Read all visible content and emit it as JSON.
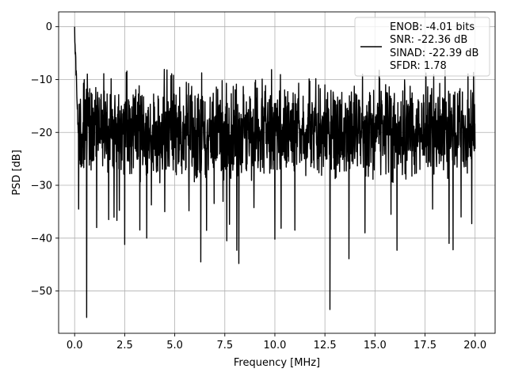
{
  "chart_data": {
    "type": "line",
    "title": "",
    "xlabel": "Frequency [MHz]",
    "ylabel": "PSD [dB]",
    "xlim": [
      -0.8,
      21.0
    ],
    "ylim": [
      -58.0,
      2.8
    ],
    "x_ticks": [
      0.0,
      2.5,
      5.0,
      7.5,
      10.0,
      12.5,
      15.0,
      17.5,
      20.0
    ],
    "x_tick_labels": [
      "0.0",
      "2.5",
      "5.0",
      "7.5",
      "10.0",
      "12.5",
      "15.0",
      "17.5",
      "20.0"
    ],
    "y_ticks": [
      0,
      -10,
      -20,
      -30,
      -40,
      -50
    ],
    "y_tick_labels": [
      "0",
      "−10",
      "−20",
      "−30",
      "−40",
      "−50"
    ],
    "grid": true,
    "legend_position": "top-right",
    "line_color": "#000000",
    "legend": {
      "lines": [
        "ENOB: -4.01 bits",
        "SNR: -22.36 dB",
        "SINAD: -22.39 dB",
        "SFDR: 1.78"
      ]
    },
    "series": [
      {
        "noise_floor_db": [
          -30,
          -10
        ],
        "peak": {
          "x": 0.0,
          "y": 0.0
        },
        "spikes": [
          {
            "x": 0.6,
            "y": -55
          },
          {
            "x": 12.75,
            "y": -53.5
          },
          {
            "x": 6.3,
            "y": -44.5
          },
          {
            "x": 8.2,
            "y": -44.8
          },
          {
            "x": 8.1,
            "y": -42.3
          },
          {
            "x": 13.7,
            "y": -43.9
          },
          {
            "x": 2.5,
            "y": -41.2
          },
          {
            "x": 3.6,
            "y": -40.0
          },
          {
            "x": 7.6,
            "y": -40.5
          },
          {
            "x": 10.0,
            "y": -40.2
          },
          {
            "x": 16.1,
            "y": -42.3
          },
          {
            "x": 18.7,
            "y": -41.0
          },
          {
            "x": 18.9,
            "y": -42.2
          },
          {
            "x": 11.0,
            "y": -38.5
          },
          {
            "x": 14.5,
            "y": -39.0
          },
          {
            "x": 1.1,
            "y": -38.0
          },
          {
            "x": 1.7,
            "y": -36.5
          },
          {
            "x": 4.5,
            "y": -35.0
          },
          {
            "x": 19.3,
            "y": -36.0
          },
          {
            "x": 15.8,
            "y": -35.5
          },
          {
            "x": 0.2,
            "y": -34.5
          }
        ]
      }
    ]
  }
}
